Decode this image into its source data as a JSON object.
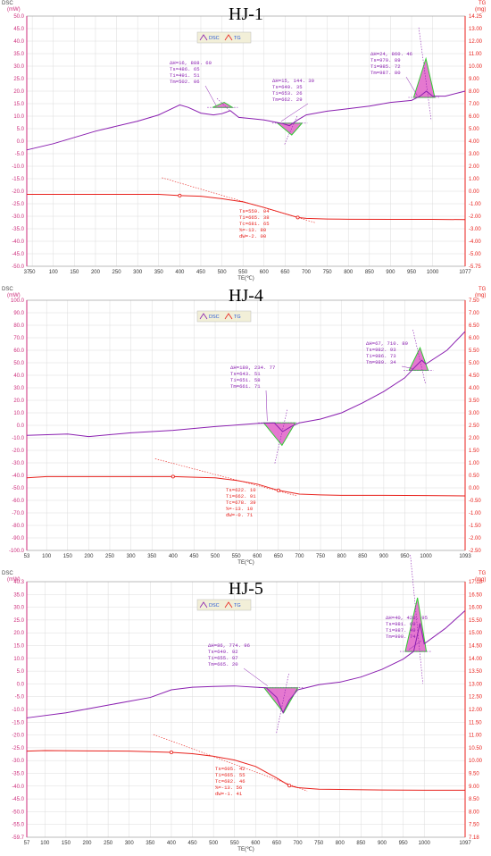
{
  "colors": {
    "left_axis": "#cc2a7a",
    "right_axis": "#e8221d",
    "dsc": "#8a1fb0",
    "tg": "#e8221d",
    "peak_fill_green": "#33cc33",
    "peak_fill_pink": "#e060c8",
    "grid": "#dcdcdc",
    "legend_bg": "#f2efd8"
  },
  "chart_data": [
    {
      "type": "line",
      "title": "HJ-1",
      "left_axis_label": "DSC",
      "left_axis_unit": "(mW)",
      "right_axis_label": "TG",
      "right_axis_unit": "(mg)",
      "xlabel": "TE(℃)",
      "xlim": [
        37,
        1077
      ],
      "x_ticks": [
        "37",
        "50",
        "100",
        "150",
        "200",
        "250",
        "300",
        "350",
        "400",
        "450",
        "500",
        "550",
        "600",
        "650",
        "700",
        "750",
        "800",
        "850",
        "900",
        "950",
        "1000",
        "1077"
      ],
      "ylim_left": [
        -50,
        50
      ],
      "y_ticks_left": [
        "50.0",
        "45.0",
        "40.0",
        "35.0",
        "30.0",
        "25.0",
        "20.0",
        "15.0",
        "10.0",
        "5.0",
        "0.0",
        "-5.0",
        "-10.0",
        "-15.0",
        "-20.0",
        "-25.0",
        "-30.0",
        "-35.0",
        "-40.0",
        "-45.0",
        "-50.0"
      ],
      "ylim_right": [
        -5.75,
        14.25
      ],
      "y_ticks_right": [
        "14.25",
        "13.00",
        "12.00",
        "11.00",
        "10.00",
        "9.00",
        "8.00",
        "7.00",
        "6.00",
        "5.00",
        "4.00",
        "3.00",
        "2.00",
        "1.00",
        "0.00",
        "-1.00",
        "-2.00",
        "-3.00",
        "-4.00",
        "-5.00",
        "-5.75"
      ],
      "legend": [
        "DSC",
        "TG"
      ],
      "series": [
        {
          "name": "DSC",
          "points": [
            [
              37,
              -3.5
            ],
            [
              100,
              -1
            ],
            [
              200,
              4
            ],
            [
              300,
              8
            ],
            [
              350,
              10.5
            ],
            [
              400,
              14.5
            ],
            [
              420,
              13.5
            ],
            [
              450,
              11.2
            ],
            [
              480,
              10.5
            ],
            [
              500,
              11
            ],
            [
              520,
              12.2
            ],
            [
              540,
              9.5
            ],
            [
              570,
              9
            ],
            [
              600,
              8.5
            ],
            [
              630,
              7.5
            ],
            [
              645,
              7
            ],
            [
              660,
              6.2
            ],
            [
              680,
              8.5
            ],
            [
              700,
              10.5
            ],
            [
              750,
              12
            ],
            [
              800,
              13
            ],
            [
              850,
              14
            ],
            [
              900,
              15.5
            ],
            [
              950,
              16.3
            ],
            [
              970,
              18
            ],
            [
              985,
              20
            ],
            [
              1000,
              18
            ],
            [
              1030,
              18
            ],
            [
              1077,
              20
            ]
          ]
        },
        {
          "name": "TG",
          "points": [
            [
              37,
              0.0
            ],
            [
              100,
              0.0
            ],
            [
              200,
              0.0
            ],
            [
              300,
              0.0
            ],
            [
              350,
              0.0
            ],
            [
              400,
              -0.1
            ],
            [
              450,
              -0.15
            ],
            [
              500,
              -0.35
            ],
            [
              550,
              -0.6
            ],
            [
              600,
              -1.05
            ],
            [
              650,
              -1.55
            ],
            [
              680,
              -1.85
            ],
            [
              700,
              -1.92
            ],
            [
              750,
              -1.97
            ],
            [
              800,
              -1.99
            ],
            [
              900,
              -2.0
            ],
            [
              1000,
              -2.0
            ],
            [
              1077,
              -2.02
            ]
          ]
        }
      ],
      "peaks": [
        {
          "lines": [
            "ΔH=16, 888. 60",
            "Ts=486. 65",
            "Ti=491. 51",
            "Tm=502. 06"
          ],
          "range": [
            478,
            525
          ],
          "ptop": 13.5,
          "tip": 15.5
        },
        {
          "lines": [
            "ΔH=15, 144. 30",
            "Ts=649. 35",
            "Ti=653. 26",
            "Tm=662. 29"
          ],
          "range": [
            632,
            690
          ],
          "ptop": 7.2,
          "tip": 2.5
        },
        {
          "lines": [
            "ΔH=24, 860. 46",
            "Ts=979. 89",
            "Ti=985. 72",
            "Tm=987. 80"
          ],
          "range": [
            955,
            1005
          ],
          "ptop": 17.5,
          "tip": 33
        }
      ],
      "tg_annotation": [
        "Ts=559. 04",
        "Ti=665. 38",
        "Tc=681. 65",
        "%=-13. 80",
        "dW=-2. 00"
      ]
    },
    {
      "type": "line",
      "title": "HJ-4",
      "left_axis_label": "DSC",
      "left_axis_unit": "(mW)",
      "right_axis_label": "TG",
      "right_axis_unit": "(mg)",
      "xlabel": "TE(℃)",
      "xlim": [
        53,
        1093
      ],
      "x_ticks": [
        "53",
        "100",
        "150",
        "200",
        "250",
        "300",
        "350",
        "400",
        "450",
        "500",
        "550",
        "600",
        "650",
        "700",
        "750",
        "800",
        "850",
        "900",
        "950",
        "1000",
        "1093"
      ],
      "ylim_left": [
        -100,
        100
      ],
      "y_ticks_left": [
        "100.0",
        "90.0",
        "80.0",
        "70.0",
        "60.0",
        "50.0",
        "40.0",
        "30.0",
        "20.0",
        "10.0",
        "0.0",
        "-10.0",
        "-20.0",
        "-30.0",
        "-40.0",
        "-50.0",
        "-60.0",
        "-70.0",
        "-80.0",
        "-90.0",
        "-100.0"
      ],
      "ylim_right": [
        -2.5,
        7.5
      ],
      "y_ticks_right": [
        "7.50",
        "7.00",
        "6.50",
        "6.00",
        "5.50",
        "5.00",
        "4.50",
        "4.00",
        "3.50",
        "3.00",
        "2.50",
        "2.00",
        "1.50",
        "1.00",
        "0.50",
        "0.00",
        "-0.50",
        "-1.00",
        "-1.50",
        "-2.00",
        "-2.50"
      ],
      "legend": [
        "DSC",
        "TG"
      ],
      "series": [
        {
          "name": "DSC",
          "points": [
            [
              53,
              -8
            ],
            [
              150,
              -7
            ],
            [
              200,
              -9
            ],
            [
              300,
              -6
            ],
            [
              400,
              -4
            ],
            [
              500,
              -1
            ],
            [
              600,
              1.5
            ],
            [
              640,
              2
            ],
            [
              660,
              -5
            ],
            [
              680,
              -1
            ],
            [
              700,
              2
            ],
            [
              750,
              5
            ],
            [
              800,
              10
            ],
            [
              850,
              18
            ],
            [
              900,
              27
            ],
            [
              950,
              38
            ],
            [
              975,
              47
            ],
            [
              990,
              52
            ],
            [
              1000,
              49
            ],
            [
              1050,
              60
            ],
            [
              1093,
              75
            ]
          ]
        },
        {
          "name": "TG",
          "points": [
            [
              53,
              0.4
            ],
            [
              100,
              0.45
            ],
            [
              200,
              0.45
            ],
            [
              300,
              0.45
            ],
            [
              400,
              0.45
            ],
            [
              460,
              0.42
            ],
            [
              500,
              0.4
            ],
            [
              550,
              0.3
            ],
            [
              600,
              0.15
            ],
            [
              650,
              -0.1
            ],
            [
              700,
              -0.25
            ],
            [
              750,
              -0.28
            ],
            [
              800,
              -0.3
            ],
            [
              900,
              -0.3
            ],
            [
              1000,
              -0.31
            ],
            [
              1093,
              -0.32
            ]
          ]
        }
      ],
      "peaks": [
        {
          "lines": [
            "ΔH=180, 234. 77",
            "Ts=643. 51",
            "Ti=651. 58",
            "Tm=661. 71"
          ],
          "range": [
            615,
            690
          ],
          "ptop": 2,
          "tip": -16
        },
        {
          "lines": [
            "ΔH=67, 710. 89",
            "Ts=982. 93",
            "Ti=986. 73",
            "Tm=989. 34"
          ],
          "range": [
            960,
            1005
          ],
          "ptop": 44,
          "tip": 62
        }
      ],
      "tg_annotation": [
        "Ts=622. 10",
        "Ti=662. 91",
        "Tc=678. 39",
        "%=-13. 10",
        "dW=-0. 71"
      ]
    },
    {
      "type": "line",
      "title": "HJ-5",
      "left_axis_label": "DSC",
      "left_axis_unit": "(mW)",
      "right_axis_label": "TG",
      "right_axis_unit": "(mg)",
      "xlabel": "TE(℃)",
      "xlim": [
        57,
        1097
      ],
      "x_ticks": [
        "57",
        "100",
        "150",
        "200",
        "250",
        "300",
        "350",
        "400",
        "450",
        "500",
        "550",
        "600",
        "650",
        "700",
        "750",
        "800",
        "850",
        "900",
        "950",
        "1000",
        "1097"
      ],
      "ylim_left": [
        -59.7,
        40.3
      ],
      "y_ticks_left": [
        "40.3",
        "35.0",
        "30.0",
        "25.0",
        "20.0",
        "15.0",
        "10.0",
        "5.0",
        "0.0",
        "-5.0",
        "-10.0",
        "-15.0",
        "-20.0",
        "-25.0",
        "-30.0",
        "-35.0",
        "-40.0",
        "-45.0",
        "-50.0",
        "-55.0",
        "-59.7"
      ],
      "ylim_right": [
        7.18,
        17.18
      ],
      "y_ticks_right": [
        "17.18",
        "16.50",
        "16.00",
        "15.50",
        "15.00",
        "14.50",
        "14.00",
        "13.50",
        "13.00",
        "12.50",
        "12.00",
        "11.50",
        "11.00",
        "10.50",
        "10.00",
        "9.50",
        "9.00",
        "8.50",
        "8.00",
        "7.50",
        "7.18"
      ],
      "legend": [
        "DSC",
        "TG"
      ],
      "series": [
        {
          "name": "DSC",
          "points": [
            [
              57,
              -13
            ],
            [
              150,
              -11
            ],
            [
              250,
              -8
            ],
            [
              350,
              -5
            ],
            [
              400,
              -2
            ],
            [
              450,
              -1
            ],
            [
              500,
              -0.7
            ],
            [
              550,
              -0.5
            ],
            [
              600,
              -1
            ],
            [
              625,
              -1.2
            ],
            [
              650,
              -5
            ],
            [
              665,
              -11
            ],
            [
              680,
              -6
            ],
            [
              700,
              -2
            ],
            [
              750,
              0
            ],
            [
              800,
              1
            ],
            [
              850,
              3
            ],
            [
              900,
              6
            ],
            [
              950,
              10
            ],
            [
              975,
              13
            ],
            [
              990,
              24
            ],
            [
              1000,
              16
            ],
            [
              1050,
              22
            ],
            [
              1097,
              29
            ]
          ]
        },
        {
          "name": "TG",
          "points": [
            [
              57,
              10.55
            ],
            [
              100,
              10.57
            ],
            [
              200,
              10.56
            ],
            [
              300,
              10.55
            ],
            [
              400,
              10.5
            ],
            [
              450,
              10.45
            ],
            [
              500,
              10.35
            ],
            [
              550,
              10.2
            ],
            [
              600,
              9.95
            ],
            [
              650,
              9.5
            ],
            [
              680,
              9.2
            ],
            [
              700,
              9.12
            ],
            [
              750,
              9.06
            ],
            [
              800,
              9.05
            ],
            [
              900,
              9.03
            ],
            [
              1000,
              9.02
            ],
            [
              1097,
              9.02
            ]
          ]
        }
      ],
      "peaks": [
        {
          "lines": [
            "ΔH=86, 774. 96",
            "Ts=649. 92",
            "Ti=655. 97",
            "Tm=665. 20"
          ],
          "range": [
            620,
            700
          ],
          "ptop": -1.2,
          "tip": -11
        },
        {
          "lines": [
            "ΔH=40, 420. 95",
            "Ts=981. 69",
            "Ti=987. 49",
            "Tm=990. 74"
          ],
          "range": [
            955,
            1005
          ],
          "ptop": 13,
          "tip": 34
        }
      ],
      "tg_annotation": [
        "Ts=605. 42",
        "Ti=665. 55",
        "Tc=682. 46",
        "%=-13. 56",
        "dW=-1. 41"
      ]
    }
  ]
}
